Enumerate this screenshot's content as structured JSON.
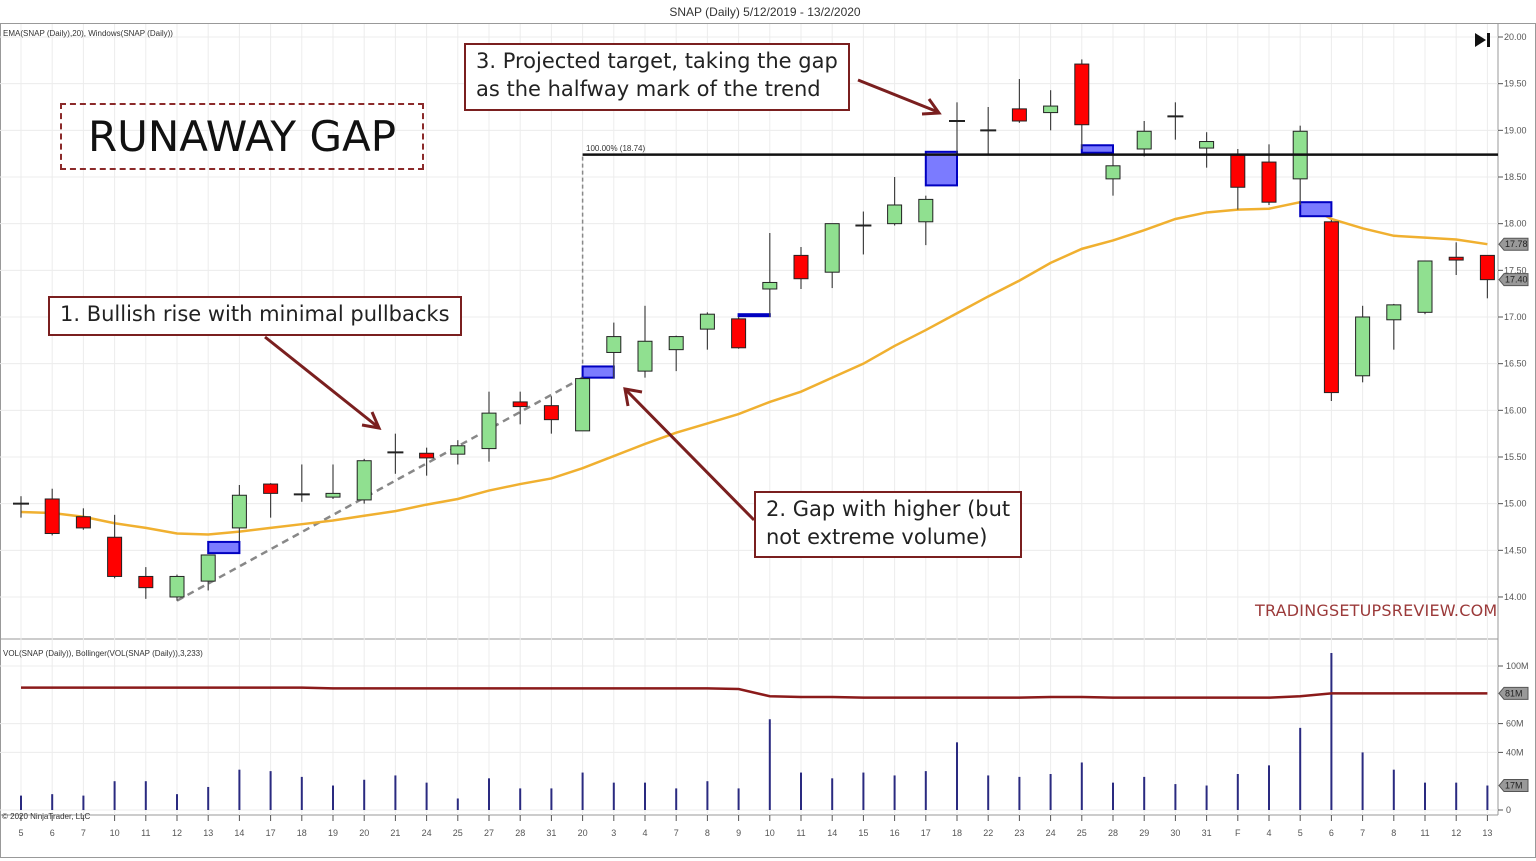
{
  "chart_data": {
    "type": "candlestick",
    "title": "SNAP (Daily)  5/12/2019 - 13/2/2020",
    "price_indicator_label": "EMA(SNAP (Daily),20), Windows(SNAP (Daily))",
    "volume_indicator_label": "VOL(SNAP (Daily)), Bollinger(VOL(SNAP (Daily)),3,233)",
    "copyright": "© 2020 NinjaTrader, LLC",
    "x_labels": [
      "5",
      "6",
      "7",
      "10",
      "11",
      "12",
      "13",
      "14",
      "17",
      "18",
      "19",
      "20",
      "21",
      "24",
      "25",
      "27",
      "28",
      "31",
      "20",
      "3",
      "4",
      "7",
      "8",
      "9",
      "10",
      "11",
      "14",
      "15",
      "16",
      "17",
      "18",
      "22",
      "23",
      "24",
      "25",
      "28",
      "29",
      "30",
      "31",
      "F",
      "4",
      "5",
      "6",
      "7",
      "8",
      "11",
      "12",
      "13"
    ],
    "ohlc": [
      [
        15.0,
        15.08,
        14.85,
        15.0
      ],
      [
        15.05,
        15.16,
        14.66,
        14.68
      ],
      [
        14.86,
        14.95,
        14.72,
        14.74
      ],
      [
        14.64,
        14.88,
        14.2,
        14.22
      ],
      [
        14.22,
        14.32,
        13.98,
        14.1
      ],
      [
        14.0,
        14.24,
        13.96,
        14.22
      ],
      [
        14.17,
        14.45,
        14.07,
        14.45
      ],
      [
        14.74,
        15.2,
        14.6,
        15.09
      ],
      [
        15.21,
        15.22,
        14.85,
        15.11
      ],
      [
        15.1,
        15.42,
        15.02,
        15.1
      ],
      [
        15.07,
        15.42,
        15.05,
        15.11
      ],
      [
        15.04,
        15.48,
        15.0,
        15.46
      ],
      [
        15.55,
        15.75,
        15.32,
        15.55
      ],
      [
        15.54,
        15.6,
        15.3,
        15.49
      ],
      [
        15.53,
        15.68,
        15.42,
        15.62
      ],
      [
        15.59,
        16.2,
        15.45,
        15.97
      ],
      [
        16.09,
        16.2,
        15.85,
        16.04
      ],
      [
        16.05,
        16.15,
        15.75,
        15.9
      ],
      [
        15.78,
        16.36,
        15.78,
        16.34
      ],
      [
        16.62,
        16.94,
        16.34,
        16.79
      ],
      [
        16.42,
        17.12,
        16.35,
        16.74
      ],
      [
        16.65,
        16.8,
        16.42,
        16.79
      ],
      [
        16.87,
        17.05,
        16.65,
        17.03
      ],
      [
        16.98,
        17.0,
        16.66,
        16.67
      ],
      [
        17.3,
        17.9,
        17.0,
        17.37
      ],
      [
        17.66,
        17.75,
        17.3,
        17.41
      ],
      [
        17.48,
        18.0,
        17.31,
        18.0
      ],
      [
        17.98,
        18.13,
        17.67,
        17.98
      ],
      [
        18.0,
        18.5,
        17.98,
        18.2
      ],
      [
        18.02,
        18.3,
        17.77,
        18.26
      ],
      [
        19.1,
        19.3,
        18.75,
        19.1
      ],
      [
        19.0,
        19.25,
        18.75,
        19.0
      ],
      [
        19.23,
        19.55,
        19.08,
        19.1
      ],
      [
        19.19,
        19.43,
        19.0,
        19.26
      ],
      [
        19.71,
        19.76,
        18.8,
        19.06
      ],
      [
        18.48,
        18.75,
        18.3,
        18.62
      ],
      [
        18.8,
        19.1,
        18.72,
        18.99
      ],
      [
        19.15,
        19.3,
        18.9,
        19.15
      ],
      [
        18.81,
        18.98,
        18.6,
        18.88
      ],
      [
        18.74,
        18.8,
        18.15,
        18.39
      ],
      [
        18.66,
        18.85,
        18.2,
        18.23
      ],
      [
        18.48,
        19.05,
        18.2,
        18.99
      ],
      [
        18.02,
        18.04,
        16.1,
        16.19
      ],
      [
        16.37,
        17.12,
        16.3,
        17.0
      ],
      [
        16.97,
        17.14,
        16.65,
        17.13
      ],
      [
        17.05,
        17.6,
        17.03,
        17.6
      ],
      [
        17.64,
        17.8,
        17.45,
        17.61
      ],
      [
        17.66,
        17.66,
        17.2,
        17.4
      ]
    ],
    "ema20": [
      14.91,
      14.9,
      14.86,
      14.79,
      14.74,
      14.68,
      14.67,
      14.7,
      14.74,
      14.78,
      14.82,
      14.87,
      14.92,
      14.99,
      15.05,
      15.14,
      15.21,
      15.27,
      15.38,
      15.51,
      15.64,
      15.76,
      15.86,
      15.96,
      16.09,
      16.2,
      16.35,
      16.5,
      16.69,
      16.86,
      17.04,
      17.22,
      17.39,
      17.58,
      17.73,
      17.82,
      17.93,
      18.05,
      18.12,
      18.15,
      18.16,
      18.23,
      18.05,
      17.95,
      17.87,
      17.85,
      17.83,
      17.78
    ],
    "volume_millions": [
      10,
      11,
      10,
      20,
      20,
      11,
      16,
      28,
      27,
      23,
      17,
      21,
      24,
      19,
      8,
      22,
      15,
      15,
      26,
      19,
      19,
      15,
      20,
      15,
      63,
      26,
      22,
      26,
      24,
      27,
      47,
      24,
      23,
      25,
      33,
      19,
      23,
      18,
      17,
      25,
      31,
      57,
      109,
      40,
      28,
      19,
      19,
      17
    ],
    "volume_bollinger_upper_millions": [
      85,
      85,
      85,
      85,
      85,
      85,
      85,
      85,
      85,
      85,
      84.5,
      84.5,
      84.5,
      84.5,
      84.5,
      84.5,
      84.5,
      84.5,
      84.5,
      84.5,
      84.5,
      84.5,
      84.5,
      84,
      79,
      78.5,
      78.5,
      78,
      78,
      78,
      78,
      78,
      78,
      78.5,
      78.5,
      78,
      78,
      78,
      78,
      78,
      78,
      79,
      81,
      81,
      81,
      81,
      81,
      81
    ],
    "gaps": [
      {
        "after_index": 6,
        "low": 14.47,
        "high": 14.59
      },
      {
        "after_index": 18,
        "low": 16.35,
        "high": 16.47
      },
      {
        "after_index": 23,
        "low": 17.01,
        "high": 17.03
      },
      {
        "after_index": 29,
        "low": 18.41,
        "high": 18.77
      },
      {
        "after_index": 34,
        "low": 18.76,
        "high": 18.84
      },
      {
        "after_index": 41,
        "low": 18.08,
        "high": 18.23
      }
    ],
    "target_level": {
      "value": 18.74,
      "label": "100.00% (18.74)",
      "start_index": 18
    },
    "trend_line": {
      "from": {
        "index": 5,
        "price": 13.96
      },
      "to": {
        "index": 18,
        "price": 16.35
      }
    },
    "price_ylim": [
      13.85,
      20.15
    ],
    "price_ticks": [
      "20.00",
      "19.50",
      "19.00",
      "18.50",
      "18.00",
      "17.50",
      "17.00",
      "16.50",
      "16.00",
      "15.50",
      "15.00",
      "14.50",
      "14.00"
    ],
    "price_tags": {
      "ema": "17.78",
      "last": "17.40"
    },
    "volume_ylim": [
      0,
      110
    ],
    "volume_ticks": [
      "100M",
      "60M",
      "40M",
      "0"
    ],
    "volume_tags": {
      "bollinger": "81M",
      "last": "17M"
    },
    "colors": {
      "up": "#90e090",
      "down": "#ff0000",
      "gap": "#7b7bff",
      "gap_border": "#0000c0",
      "ema": "#f0b030",
      "volume": "#2a2a80",
      "bollinger": "#8b1a1a"
    }
  },
  "annotations": {
    "headline": "RUNAWAY GAP",
    "note1": "1. Bullish rise with minimal pullbacks",
    "note2_line1": "2. Gap with higher (but",
    "note2_line2": "not extreme volume)",
    "note3_line1": "3. Projected target, taking the gap",
    "note3_line2": "as the halfway mark of the trend",
    "watermark": "TRADINGSETUPSREVIEW.COM"
  }
}
